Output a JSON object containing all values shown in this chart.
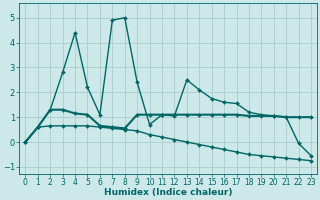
{
  "xlabel": "Humidex (Indice chaleur)",
  "ylabel": "",
  "xlim": [
    -0.5,
    23.5
  ],
  "ylim": [
    -1.3,
    5.6
  ],
  "yticks": [
    -1,
    0,
    1,
    2,
    3,
    4,
    5
  ],
  "xticks": [
    0,
    1,
    2,
    3,
    4,
    5,
    6,
    7,
    8,
    9,
    10,
    11,
    12,
    13,
    14,
    15,
    16,
    17,
    18,
    19,
    20,
    21,
    22,
    23
  ],
  "background_color": "#cce8e8",
  "grid_color": "#aacccc",
  "line_color": "#006666",
  "line1_x": [
    0,
    1,
    2,
    3,
    4,
    5,
    6,
    7,
    8,
    9,
    10,
    11,
    12,
    13,
    14,
    15,
    16,
    17,
    18,
    19,
    20,
    21,
    22,
    23
  ],
  "line1_y": [
    0.0,
    0.6,
    1.3,
    2.8,
    4.4,
    2.2,
    1.1,
    4.9,
    5.0,
    2.4,
    0.7,
    1.1,
    1.05,
    2.5,
    2.1,
    1.75,
    1.6,
    1.55,
    1.2,
    1.1,
    1.05,
    1.0,
    -0.05,
    -0.55
  ],
  "line2_x": [
    0,
    1,
    2,
    3,
    4,
    5,
    6,
    7,
    8,
    9,
    10,
    11,
    12,
    13,
    14,
    15,
    16,
    17,
    18,
    19,
    20,
    21,
    22,
    23
  ],
  "line2_y": [
    0.0,
    0.6,
    1.3,
    1.3,
    1.15,
    1.1,
    0.65,
    0.6,
    0.55,
    1.1,
    1.1,
    1.1,
    1.1,
    1.1,
    1.1,
    1.1,
    1.1,
    1.1,
    1.05,
    1.05,
    1.05,
    1.0,
    1.0,
    1.0
  ],
  "line3_x": [
    0,
    1,
    2,
    3,
    4,
    5,
    6,
    7,
    8,
    9,
    10,
    11,
    12,
    13,
    14,
    15,
    16,
    17,
    18,
    19,
    20,
    21,
    22,
    23
  ],
  "line3_y": [
    0.0,
    0.6,
    0.65,
    0.65,
    0.65,
    0.65,
    0.6,
    0.55,
    0.5,
    0.45,
    0.3,
    0.2,
    0.1,
    0.0,
    -0.1,
    -0.2,
    -0.3,
    -0.4,
    -0.5,
    -0.55,
    -0.6,
    -0.65,
    -0.7,
    -0.75
  ],
  "line1_lw": 1.0,
  "line2_lw": 1.5,
  "line3_lw": 1.0,
  "marker_size": 2.0,
  "tick_fontsize": 5.5,
  "xlabel_fontsize": 6.5
}
